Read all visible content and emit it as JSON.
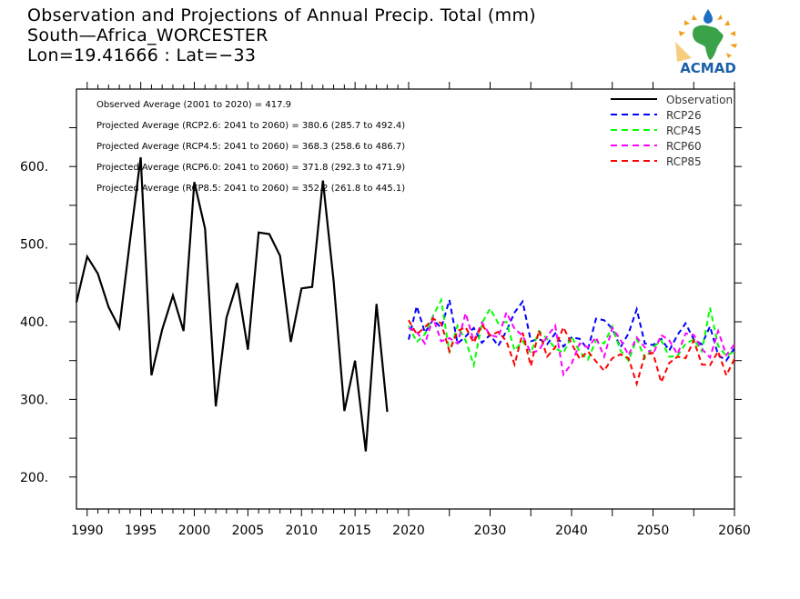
{
  "header": {
    "title": "Observation and Projections of Annual Precip. Total (mm)",
    "location": "South—Africa_WORCESTER",
    "coords": "Lon=19.41666 : Lat=−33"
  },
  "logo": {
    "text": "ACMAD",
    "colors": {
      "text": "#1a5fa8",
      "continent": "#3aa34a",
      "sun": "#f0a020",
      "drop": "#1f6fc0"
    }
  },
  "stats": [
    "Observed Average (2001 to 2020) = 417.9",
    "Projected Average (RCP2.6: 2041 to 2060) = 380.6 (285.7 to 492.4)",
    "Projected Average (RCP4.5: 2041 to 2060) = 368.3 (258.6 to 486.7)",
    "Projected Average (RCP6.0: 2041 to 2060) = 371.8 (292.3 to 471.9)",
    "Projected Average (RCP8.5: 2041 to 2060) = 352.2 (261.8 to 445.1)"
  ],
  "chart_data": {
    "type": "line",
    "title": "Observation and Projections of Annual Precip. Total (mm)",
    "xlabel": "",
    "ylabel": "",
    "ylim": [
      158,
      702
    ],
    "xlim": [
      1989,
      2060
    ],
    "grid": false,
    "legend_position": "top-right",
    "x_ticks_observed": [
      "1990",
      "1995",
      "2000",
      "2005",
      "2010",
      "2015",
      "2020"
    ],
    "x_ticks_projected": [
      "2030",
      "2040",
      "2050",
      "2060"
    ],
    "y_ticks": [
      "200.",
      "300.",
      "400.",
      "500.",
      "600."
    ],
    "y_tick_values": [
      200,
      300,
      400,
      500,
      600
    ],
    "series": [
      {
        "name": "Observation",
        "color": "#000000",
        "style": "solid",
        "x": [
          1989,
          1990,
          1991,
          1992,
          1993,
          1994,
          1995,
          1996,
          1997,
          1998,
          1999,
          2000,
          2001,
          2002,
          2003,
          2004,
          2005,
          2006,
          2007,
          2008,
          2009,
          2010,
          2011,
          2012,
          2013,
          2014,
          2015,
          2016,
          2017,
          2018,
          2019,
          2020
        ],
        "values": [
          425,
          484,
          462,
          419,
          392,
          505,
          612,
          331,
          390,
          434,
          388,
          580,
          520,
          291,
          405,
          450,
          364,
          515,
          513,
          485,
          374,
          443,
          445,
          582,
          452,
          285,
          350,
          233,
          423,
          284,
          null,
          null
        ]
      },
      {
        "name": "RCP26",
        "color": "#0000ff",
        "style": "dashed",
        "x": [
          2020,
          2021,
          2022,
          2023,
          2024,
          2025,
          2026,
          2027,
          2028,
          2029,
          2030,
          2031,
          2032,
          2033,
          2034,
          2035,
          2036,
          2037,
          2038,
          2039,
          2040,
          2041,
          2042,
          2043,
          2044,
          2045,
          2046,
          2047,
          2048,
          2049,
          2050,
          2051,
          2052,
          2053,
          2054,
          2055,
          2056,
          2057,
          2058,
          2059,
          2060
        ],
        "values": [
          377,
          420,
          386,
          403,
          392,
          428,
          372,
          381,
          392,
          373,
          383,
          369,
          388,
          412,
          426,
          375,
          378,
          371,
          385,
          368,
          380,
          378,
          364,
          404,
          402,
          391,
          367,
          385,
          416,
          372,
          370,
          378,
          363,
          383,
          398,
          377,
          371,
          394,
          357,
          350,
          366
        ]
      },
      {
        "name": "RCP45",
        "color": "#00ff00",
        "style": "dashed",
        "x": [
          2020,
          2021,
          2022,
          2023,
          2024,
          2025,
          2026,
          2027,
          2028,
          2029,
          2030,
          2031,
          2032,
          2033,
          2034,
          2035,
          2036,
          2037,
          2038,
          2039,
          2040,
          2041,
          2042,
          2043,
          2044,
          2045,
          2046,
          2047,
          2048,
          2049,
          2050,
          2051,
          2052,
          2053,
          2054,
          2055,
          2056,
          2057,
          2058,
          2059,
          2060
        ],
        "values": [
          395,
          374,
          384,
          408,
          428,
          360,
          395,
          376,
          344,
          398,
          417,
          398,
          400,
          363,
          375,
          360,
          388,
          378,
          366,
          360,
          381,
          361,
          351,
          376,
          372,
          394,
          363,
          350,
          378,
          353,
          367,
          376,
          355,
          356,
          372,
          377,
          362,
          418,
          369,
          356,
          362
        ]
      },
      {
        "name": "RCP60",
        "color": "#ff00ff",
        "style": "dashed",
        "x": [
          2020,
          2021,
          2022,
          2023,
          2024,
          2025,
          2026,
          2027,
          2028,
          2029,
          2030,
          2031,
          2032,
          2033,
          2034,
          2035,
          2036,
          2037,
          2038,
          2039,
          2040,
          2041,
          2042,
          2043,
          2044,
          2045,
          2046,
          2047,
          2048,
          2049,
          2050,
          2051,
          2052,
          2053,
          2054,
          2055,
          2056,
          2057,
          2058,
          2059,
          2060
        ],
        "values": [
          392,
          387,
          372,
          405,
          375,
          379,
          372,
          411,
          375,
          399,
          383,
          380,
          412,
          391,
          382,
          360,
          363,
          381,
          395,
          332,
          346,
          372,
          367,
          380,
          355,
          392,
          377,
          357,
          380,
          367,
          358,
          383,
          376,
          358,
          385,
          383,
          365,
          354,
          388,
          357,
          371
        ]
      },
      {
        "name": "RCP85",
        "color": "#ff0000",
        "style": "dashed",
        "x": [
          2020,
          2021,
          2022,
          2023,
          2024,
          2025,
          2026,
          2027,
          2028,
          2029,
          2030,
          2031,
          2032,
          2033,
          2034,
          2035,
          2036,
          2037,
          2038,
          2039,
          2040,
          2041,
          2042,
          2043,
          2044,
          2045,
          2046,
          2047,
          2048,
          2049,
          2050,
          2051,
          2052,
          2053,
          2054,
          2055,
          2056,
          2057,
          2058,
          2059,
          2060
        ],
        "values": [
          402,
          384,
          393,
          404,
          398,
          362,
          388,
          393,
          373,
          396,
          382,
          387,
          375,
          345,
          386,
          343,
          389,
          355,
          367,
          393,
          372,
          352,
          362,
          349,
          337,
          353,
          358,
          353,
          320,
          357,
          360,
          322,
          347,
          355,
          353,
          376,
          345,
          344,
          362,
          331,
          352
        ]
      }
    ]
  }
}
